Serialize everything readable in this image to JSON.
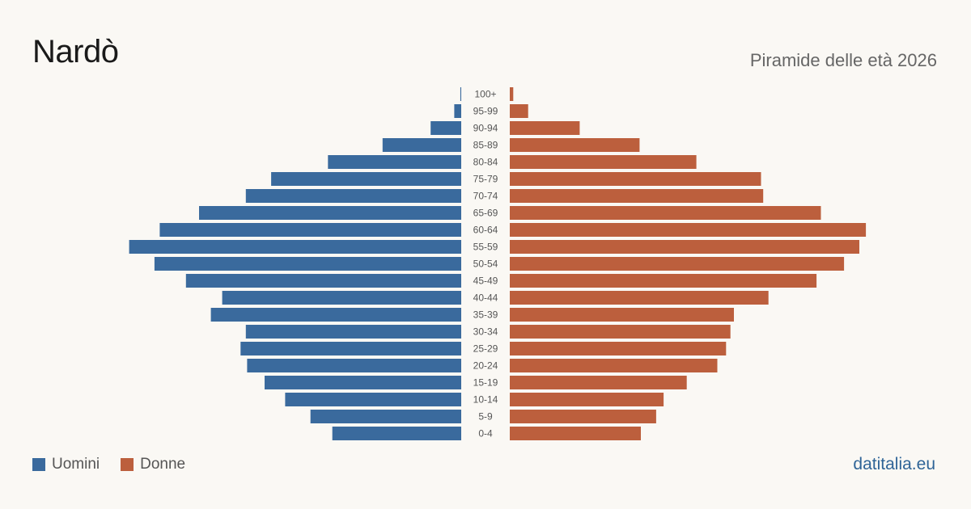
{
  "header": {
    "title": "Nardò",
    "subtitle": "Piramide delle età 2026"
  },
  "legend": {
    "men_label": "Uomini",
    "women_label": "Donne"
  },
  "source": "datitalia.eu",
  "colors": {
    "men": "#3a6a9d",
    "women": "#bc5f3d",
    "background": "#faf8f4"
  },
  "chart_data": {
    "type": "bar",
    "orientation": "horizontal-population-pyramid",
    "categories": [
      "100+",
      "95-99",
      "90-94",
      "85-89",
      "80-84",
      "75-79",
      "70-74",
      "65-69",
      "60-64",
      "55-59",
      "50-54",
      "45-49",
      "40-44",
      "35-39",
      "30-34",
      "25-29",
      "20-24",
      "15-19",
      "10-14",
      "5-9",
      "0-4"
    ],
    "series": [
      {
        "name": "Uomini",
        "values": [
          2,
          16,
          70,
          180,
          305,
          435,
          493,
          600,
          690,
          760,
          702,
          630,
          547,
          573,
          493,
          505,
          490,
          450,
          403,
          345,
          295
        ]
      },
      {
        "name": "Donne",
        "values": [
          8,
          42,
          160,
          297,
          427,
          575,
          580,
          712,
          815,
          800,
          765,
          702,
          592,
          513,
          505,
          495,
          475,
          405,
          352,
          335,
          300
        ]
      }
    ],
    "xlim": [
      0,
      800
    ],
    "grid": false,
    "legend_position": "bottom-left"
  }
}
